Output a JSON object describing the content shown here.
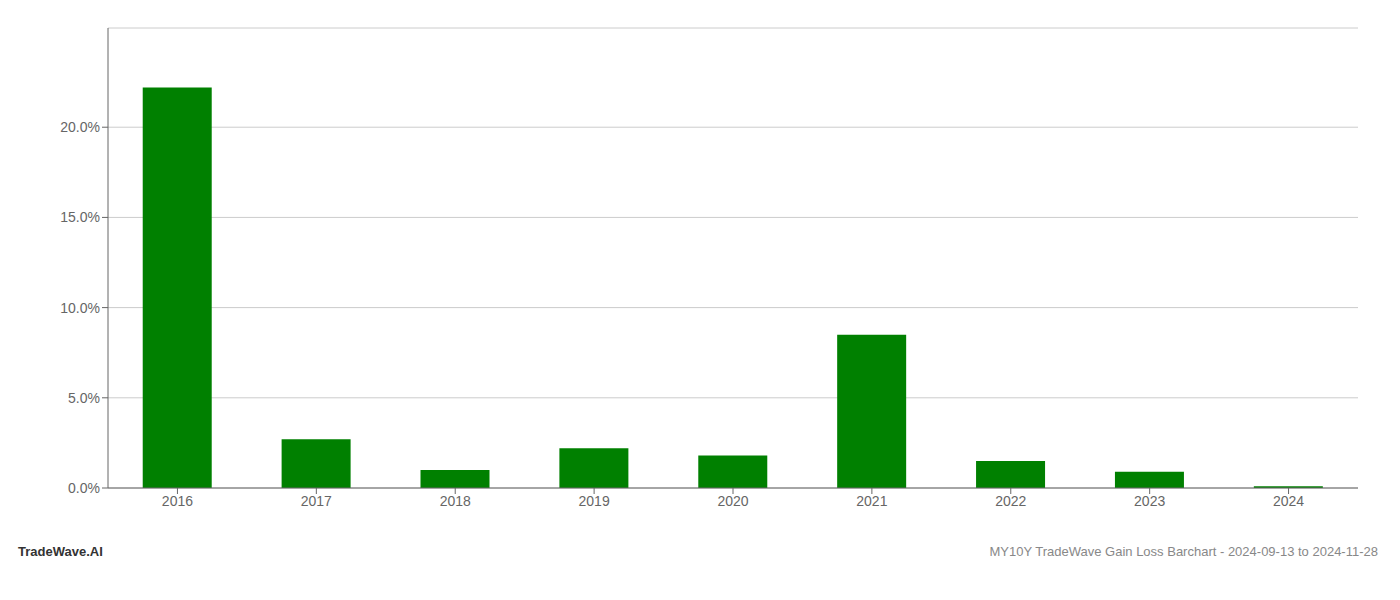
{
  "chart_data": {
    "type": "bar",
    "categories": [
      "2016",
      "2017",
      "2018",
      "2019",
      "2020",
      "2021",
      "2022",
      "2023",
      "2024"
    ],
    "values": [
      0.222,
      0.027,
      0.01,
      0.022,
      0.018,
      0.085,
      0.015,
      0.009,
      0.001
    ],
    "color": "#008000",
    "ylim": [
      0,
      0.255
    ],
    "yticks": [
      {
        "value": 0.0,
        "label": "0.0%"
      },
      {
        "value": 0.05,
        "label": "5.0%"
      },
      {
        "value": 0.1,
        "label": "10.0%"
      },
      {
        "value": 0.15,
        "label": "15.0%"
      },
      {
        "value": 0.2,
        "label": "20.0%"
      }
    ],
    "grid": true,
    "annotations": [
      "TradeWave.AI",
      "MY10Y TradeWave Gain Loss Barchart - 2024-09-13 to 2024-11-28"
    ]
  }
}
